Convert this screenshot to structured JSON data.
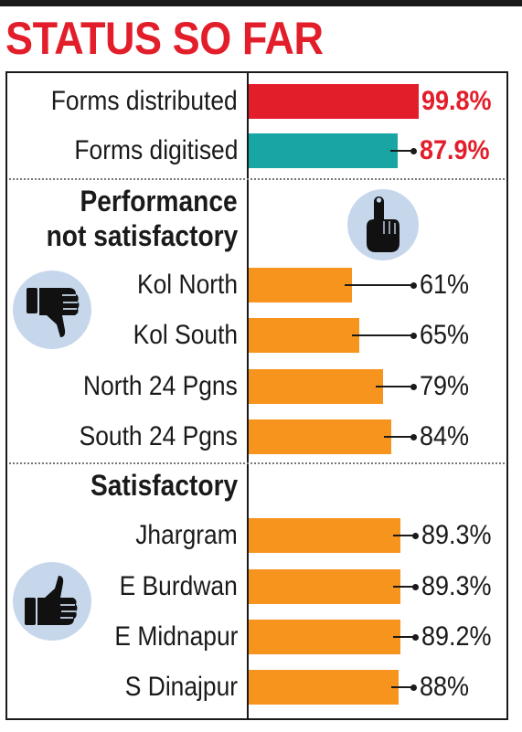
{
  "title": "STATUS SO FAR",
  "colors": {
    "red": "#e31e2b",
    "teal": "#1aa5a5",
    "orange": "#f7941d",
    "icon_bg": "#c6d7ec"
  },
  "sections": {
    "not_satisfactory_heading_line1": "Performance",
    "not_satisfactory_heading_line2": "not satisfactory",
    "satisfactory_heading": "Satisfactory"
  },
  "icons": [
    "pointing-finger-icon",
    "thumbs-down-icon",
    "thumbs-up-icon"
  ],
  "chart_data": {
    "type": "bar",
    "orientation": "horizontal",
    "title": "STATUS SO FAR",
    "unit": "%",
    "xlim": [
      0,
      100
    ],
    "bars": [
      {
        "label": "Forms distributed",
        "value": 99.8,
        "display": "99.8%",
        "color": "#e31e2b",
        "group": "overall"
      },
      {
        "label": "Forms digitised",
        "value": 87.9,
        "display": "87.9%",
        "color": "#1aa5a5",
        "group": "overall"
      },
      {
        "label": "Kol North",
        "value": 61,
        "display": "61%",
        "color": "#f7941d",
        "group": "not_satisfactory"
      },
      {
        "label": "Kol South",
        "value": 65,
        "display": "65%",
        "color": "#f7941d",
        "group": "not_satisfactory"
      },
      {
        "label": "North 24 Pgns",
        "value": 79,
        "display": "79%",
        "color": "#f7941d",
        "group": "not_satisfactory"
      },
      {
        "label": "South 24 Pgns",
        "value": 84,
        "display": "84%",
        "color": "#f7941d",
        "group": "not_satisfactory"
      },
      {
        "label": "Jhargram",
        "value": 89.3,
        "display": "89.3%",
        "color": "#f7941d",
        "group": "satisfactory"
      },
      {
        "label": "E Burdwan",
        "value": 89.3,
        "display": "89.3%",
        "color": "#f7941d",
        "group": "satisfactory"
      },
      {
        "label": "E Midnapur",
        "value": 89.2,
        "display": "89.2%",
        "color": "#f7941d",
        "group": "satisfactory"
      },
      {
        "label": "S Dinajpur",
        "value": 88,
        "display": "88%",
        "color": "#f7941d",
        "group": "satisfactory"
      }
    ]
  }
}
